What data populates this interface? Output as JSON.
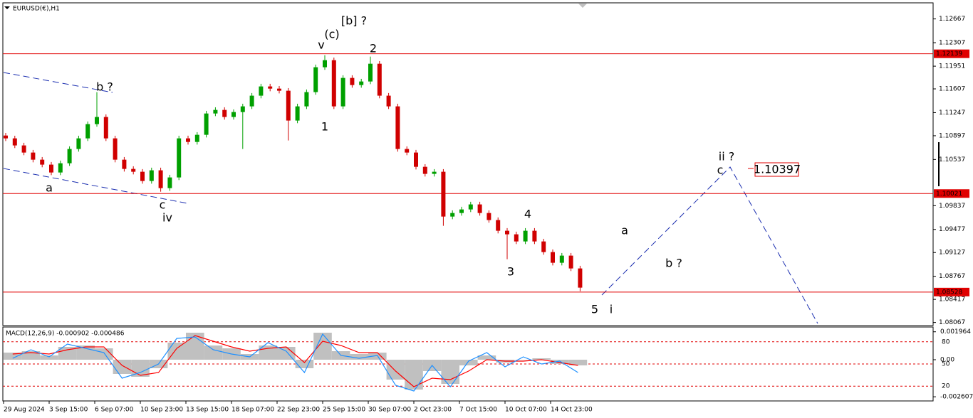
{
  "chart_data": [
    {
      "type": "candlestick",
      "title": "EURUSD(€),H1",
      "categories": [
        "29 Aug 2024",
        null,
        null,
        null,
        null,
        "3 Sep 15:00",
        null,
        null,
        null,
        null,
        "6 Sep 07:00",
        null,
        null,
        null,
        null,
        "10 Sep 23:00",
        null,
        null,
        null,
        null,
        "13 Sep 15:00",
        null,
        null,
        null,
        null,
        "18 Sep 07:00",
        null,
        null,
        null,
        null,
        "22 Sep 23:00",
        null,
        null,
        null,
        null,
        "25 Sep 15:00",
        null,
        null,
        null,
        null,
        "30 Sep 07:00",
        null,
        null,
        null,
        null,
        "2 Oct 23:00",
        null,
        null,
        null,
        null,
        "7 Oct 15:00",
        null,
        null,
        null,
        null,
        "10 Oct 07:00",
        null,
        null,
        null,
        null,
        "14 Oct 23:00",
        null,
        null,
        null
      ],
      "open": [
        1.109,
        1.10857,
        1.1075,
        1.10642,
        1.10534,
        1.10459,
        1.1034,
        1.1048,
        1.10696,
        1.10857,
        1.11073,
        1.11181,
        1.10857,
        1.10534,
        1.10394,
        1.10351,
        1.10211,
        1.10373,
        1.10103,
        1.10265,
        1.10857,
        1.10803,
        1.10911,
        1.11234,
        1.11288,
        1.11181,
        1.11256,
        1.11342,
        1.11504,
        1.11644,
        1.11611,
        1.11579,
        1.11127,
        1.11342,
        1.11558,
        1.11935,
        1.12042,
        1.11342,
        1.11773,
        1.11665,
        1.11719,
        1.11988,
        1.11504,
        1.11342,
        1.10696,
        1.10642,
        1.10426,
        1.10319,
        1.10351,
        1.09672,
        1.09726,
        1.0978,
        1.09856,
        1.09726,
        1.09619,
        1.09457,
        1.09403,
        1.09295,
        1.09457,
        1.09295,
        1.09134,
        1.08972,
        1.0908,
        1.08886
      ],
      "high": [
        1.1094,
        1.10897,
        1.1079,
        1.10682,
        1.10574,
        1.10499,
        1.1052,
        1.10736,
        1.10897,
        1.11113,
        1.11558,
        1.11221,
        1.10897,
        1.10574,
        1.10434,
        1.10391,
        1.10413,
        1.10413,
        1.10305,
        1.10897,
        1.10897,
        1.10951,
        1.11274,
        1.11328,
        1.11328,
        1.11296,
        1.11382,
        1.11544,
        1.11684,
        1.11684,
        1.11651,
        1.11619,
        1.11382,
        1.11598,
        1.11975,
        1.12118,
        1.12082,
        1.11813,
        1.11813,
        1.11759,
        1.12096,
        1.12028,
        1.11544,
        1.11382,
        1.10736,
        1.10682,
        1.10466,
        1.10391,
        1.10391,
        1.09766,
        1.0982,
        1.09896,
        1.09896,
        1.09766,
        1.09659,
        1.09497,
        1.09443,
        1.09497,
        1.09497,
        1.09335,
        1.09174,
        1.0912,
        1.0912,
        1.08926
      ],
      "low": [
        1.10817,
        1.1071,
        1.10602,
        1.10494,
        1.10419,
        1.103,
        1.103,
        1.1044,
        1.10656,
        1.10817,
        1.11033,
        1.10817,
        1.10494,
        1.10354,
        1.10311,
        1.10171,
        1.10171,
        1.10049,
        1.10063,
        1.10225,
        1.10763,
        1.10763,
        1.10871,
        1.11194,
        1.11141,
        1.11141,
        1.10696,
        1.11302,
        1.11464,
        1.11571,
        1.11539,
        1.10825,
        1.11087,
        1.11302,
        1.11518,
        1.11895,
        1.11302,
        1.11302,
        1.11625,
        1.11625,
        1.11679,
        1.11464,
        1.11302,
        1.10656,
        1.10602,
        1.10386,
        1.10279,
        1.10279,
        1.09532,
        1.09632,
        1.09686,
        1.0974,
        1.09686,
        1.09579,
        1.09417,
        1.09026,
        1.09255,
        1.09255,
        1.09255,
        1.09094,
        1.08932,
        1.08932,
        1.08846,
        1.08541
      ],
      "close": [
        1.10857,
        1.1075,
        1.10642,
        1.10534,
        1.10459,
        1.1034,
        1.1048,
        1.10696,
        1.10857,
        1.11073,
        1.11181,
        1.10857,
        1.10534,
        1.10394,
        1.10351,
        1.10211,
        1.10373,
        1.10103,
        1.10265,
        1.10857,
        1.10803,
        1.10911,
        1.11234,
        1.11288,
        1.11181,
        1.11256,
        1.11342,
        1.11504,
        1.11644,
        1.11611,
        1.11579,
        1.11127,
        1.11342,
        1.11558,
        1.11935,
        1.12042,
        1.11342,
        1.11773,
        1.11665,
        1.11719,
        1.11988,
        1.11504,
        1.11342,
        1.10696,
        1.10642,
        1.10426,
        1.10319,
        1.10351,
        1.09672,
        1.09726,
        1.0978,
        1.09856,
        1.09726,
        1.09619,
        1.09457,
        1.09403,
        1.09295,
        1.09457,
        1.09295,
        1.09134,
        1.08972,
        1.0908,
        1.08886,
        1.08595
      ],
      "up_color": "#00a000",
      "down_color": "#d00000",
      "ylim": [
        1.0802,
        1.129
      ],
      "yticks": [
        1.12667,
        1.12307,
        1.11951,
        1.11607,
        1.11247,
        1.10897,
        1.10537,
        1.09837,
        1.09477,
        1.09127,
        1.08767,
        1.08417,
        1.08067
      ],
      "levels": [
        1.12139,
        1.10021,
        1.08528
      ],
      "level_color": "#e00000",
      "annotations": [
        {
          "text": "[b] ?",
          "color": "#008000"
        },
        {
          "text": "(c)",
          "color": "#0000ff"
        },
        {
          "text": "v",
          "color": "#ff00ff"
        },
        {
          "text": "2",
          "color": "#000000"
        },
        {
          "text": "1",
          "color": "#000000"
        },
        {
          "text": "b ?",
          "color": "#000000"
        },
        {
          "text": "a",
          "color": "#000000"
        },
        {
          "text": "c",
          "color": "#000000"
        },
        {
          "text": "iv",
          "color": "#ff00ff"
        },
        {
          "text": "4",
          "color": "#000000"
        },
        {
          "text": "3",
          "color": "#000000"
        },
        {
          "text": "5",
          "color": "#000000"
        },
        {
          "text": "i",
          "color": "#ff00ff"
        },
        {
          "text": "a",
          "color": "#000000"
        },
        {
          "text": "b ?",
          "color": "#000000"
        },
        {
          "text": "ii ?",
          "color": "#ff00ff"
        },
        {
          "text": "c",
          "color": "#000000"
        },
        {
          "text": "1.10397",
          "color": "#e00000"
        }
      ]
    },
    {
      "type": "macd",
      "title": "MACD(12,26,9) -0.000902 -0.000486",
      "series": [
        {
          "color": "#c0c0c0",
          "values": [
            0.0005,
            0.0006,
            0.0003,
            0.0009,
            0.001,
            0.0008,
            -0.001,
            -0.0012,
            -0.0006,
            0.0012,
            0.0019,
            0.001,
            0.0008,
            0.0004,
            0.001,
            0.0009,
            -0.0006,
            0.0019,
            0.0006,
            0.0004,
            0.0005,
            -0.0014,
            -0.0021,
            -0.0008,
            -0.0017,
            -0.0004,
            0.0003,
            -0.0002,
            0.0,
            0.0001,
            -0.0003,
            -0.0004
          ]
        },
        {
          "color": "#ff0000",
          "values": [
            0.0004,
            0.0005,
            0.0004,
            0.0007,
            0.0009,
            0.0009,
            -0.0004,
            -0.0011,
            -0.0009,
            0.0008,
            0.0017,
            0.0013,
            0.0009,
            0.0006,
            0.0008,
            0.0009,
            -0.0002,
            0.0013,
            0.001,
            0.0005,
            0.0005,
            -0.0008,
            -0.0019,
            -0.0013,
            -0.0014,
            -0.0008,
            0.0,
            -0.0001,
            -0.0001,
            0.0,
            -0.0002,
            -0.0004
          ]
        },
        {
          "color": "#1e90ff",
          "values": [
            0.0001,
            0.0007,
            0.0002,
            0.0011,
            0.0008,
            0.0005,
            -0.0013,
            -0.0009,
            -0.0003,
            0.0015,
            0.0016,
            0.0007,
            0.0004,
            0.0002,
            0.0012,
            0.0006,
            -0.0009,
            0.0018,
            0.0003,
            0.0001,
            0.0003,
            -0.0018,
            -0.0022,
            -0.0004,
            -0.0019,
            -0.0001,
            0.0005,
            -0.0005,
            0.0002,
            -0.0003,
            -0.0001,
            -0.0009
          ]
        }
      ],
      "ylim": [
        -0.0029,
        0.0023
      ],
      "yticks": [
        0.001964,
        {
          "value": 0,
          "label": "0.00"
        },
        -0.002607
      ],
      "y2lim": [
        0,
        100
      ],
      "y2ticks": [
        80,
        50,
        20
      ],
      "level_color": "#e00000"
    }
  ]
}
